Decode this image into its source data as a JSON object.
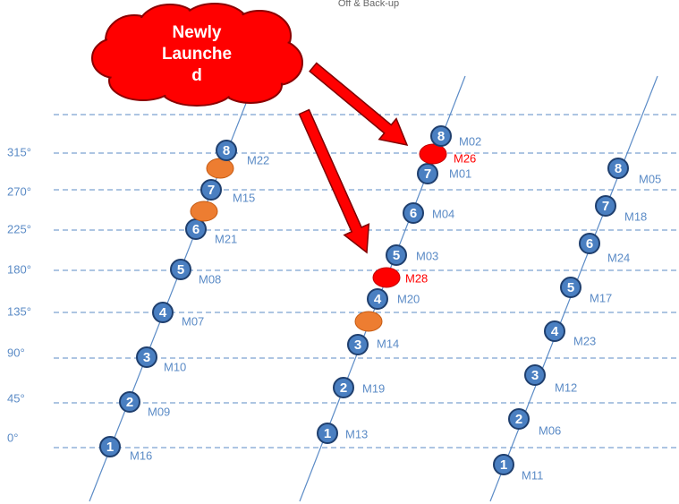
{
  "title": "Off & Back-up",
  "cloud_text": [
    "Newly",
    "Launche",
    "d"
  ],
  "axis_labels": [
    "315°",
    "270°",
    "225°",
    "180°",
    "135°",
    "90°",
    "45°",
    "0°"
  ],
  "planes": [
    {
      "nodes": [
        {
          "number": "1",
          "label": "M16"
        },
        {
          "number": "2",
          "label": "M09"
        },
        {
          "number": "3",
          "label": "M10"
        },
        {
          "number": "4",
          "label": "M07"
        },
        {
          "number": "5",
          "label": "M08"
        },
        {
          "number": "6",
          "label": "M21"
        },
        {
          "color": "orange"
        },
        {
          "number": "7",
          "label": "M15"
        },
        {
          "color": "orange"
        },
        {
          "number": "8",
          "label": "M22"
        }
      ]
    },
    {
      "nodes": [
        {
          "number": "1",
          "label": "M13"
        },
        {
          "number": "2",
          "label": "M19"
        },
        {
          "number": "3",
          "label": "M14"
        },
        {
          "color": "orange"
        },
        {
          "number": "4",
          "label": "M20"
        },
        {
          "color": "red",
          "label": "M28"
        },
        {
          "number": "5",
          "label": "M03"
        },
        {
          "number": "6",
          "label": "M04"
        },
        {
          "number": "7",
          "label": "M01"
        },
        {
          "color": "red",
          "label": "M26"
        },
        {
          "number": "8",
          "label": "M02"
        }
      ]
    },
    {
      "nodes": [
        {
          "number": "1",
          "label": "M11"
        },
        {
          "number": "2",
          "label": "M06"
        },
        {
          "number": "3",
          "label": "M12"
        },
        {
          "number": "4",
          "label": "M23"
        },
        {
          "number": "5",
          "label": "M17"
        },
        {
          "number": "6",
          "label": "M24"
        },
        {
          "number": "7",
          "label": "M18"
        },
        {
          "number": "8",
          "label": "M05"
        }
      ]
    }
  ]
}
